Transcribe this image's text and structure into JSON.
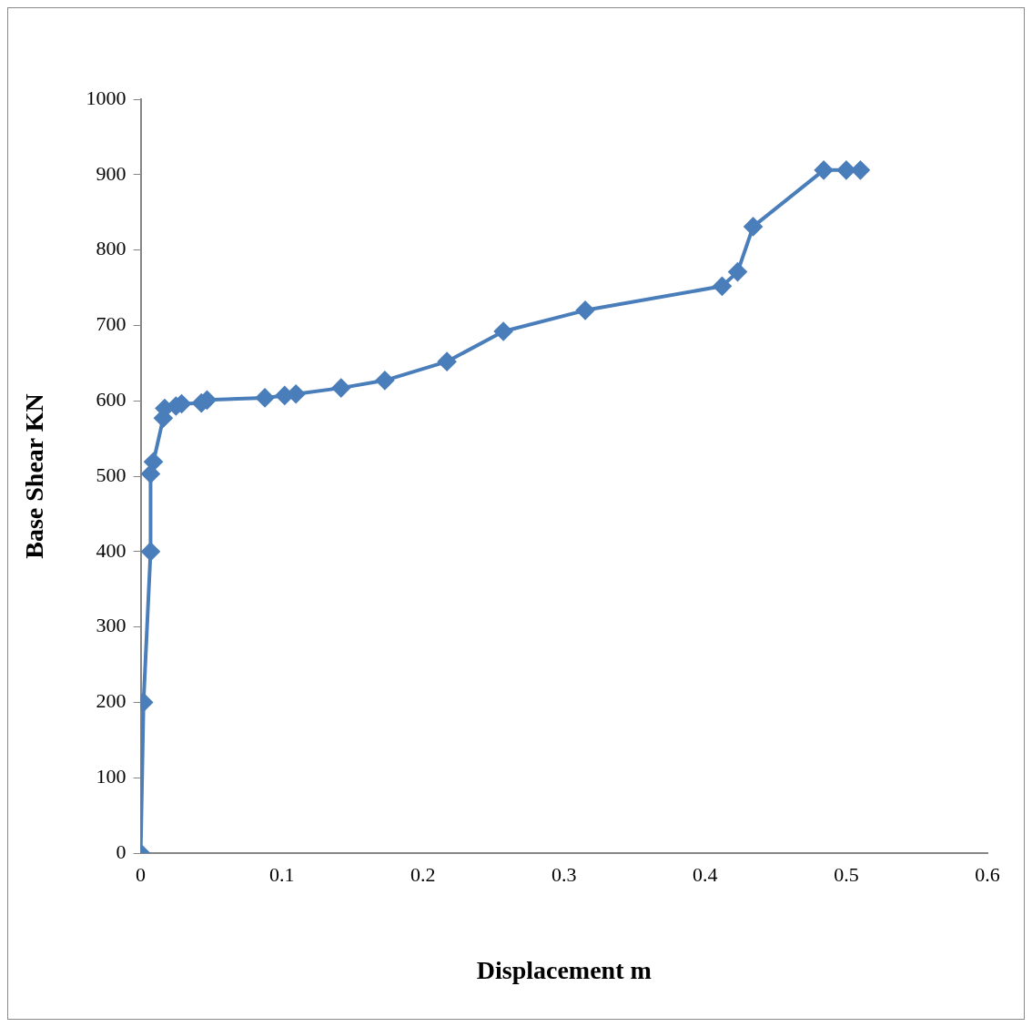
{
  "chart_data": {
    "type": "line",
    "xlabel": "Displacement m",
    "ylabel": "Base Shear KN",
    "series": [
      {
        "color": "#4a7ebb",
        "x": [
          0,
          0.002,
          0.007,
          0.007,
          0.009,
          0.016,
          0.017,
          0.025,
          0.029,
          0.043,
          0.047,
          0.088,
          0.102,
          0.11,
          0.142,
          0.173,
          0.217,
          0.257,
          0.315,
          0.412,
          0.423,
          0.434,
          0.484,
          0.5,
          0.51
        ],
        "values": [
          0,
          200,
          400,
          503,
          519,
          577,
          590,
          593,
          596,
          597,
          601,
          604,
          607,
          609,
          617,
          627,
          652,
          692,
          720,
          752,
          771,
          831,
          906,
          906,
          906
        ]
      }
    ],
    "xlim": [
      0,
      0.6
    ],
    "xticks": [
      0,
      0.1,
      0.2,
      0.3,
      0.4,
      0.5,
      0.6
    ],
    "ylim": [
      0,
      1000
    ],
    "yticks": [
      0,
      100,
      200,
      300,
      400,
      500,
      600,
      700,
      800,
      900,
      1000
    ],
    "grid": false,
    "legend": false,
    "marker": "diamond",
    "line_style": "solid"
  }
}
